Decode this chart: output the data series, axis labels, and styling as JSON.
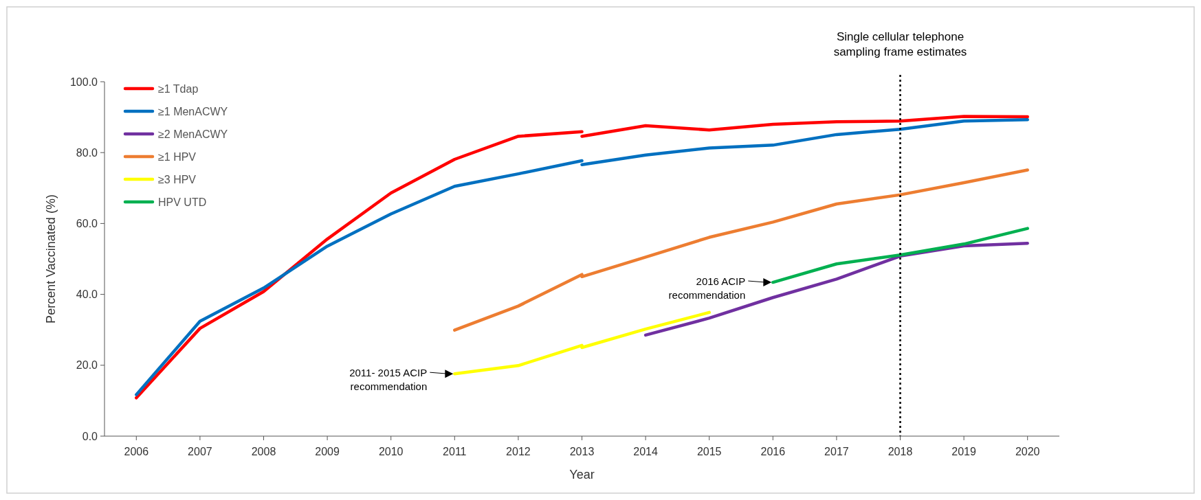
{
  "chart_data": {
    "type": "line",
    "xlabel": "Year",
    "ylabel": "Percent Vaccinated (%)",
    "xlim": [
      2005.5,
      2020.5
    ],
    "xticks": [
      2006,
      2007,
      2008,
      2009,
      2010,
      2011,
      2012,
      2013,
      2014,
      2015,
      2016,
      2017,
      2018,
      2019,
      2020
    ],
    "ylim": [
      0,
      100
    ],
    "yticks": [
      {
        "value": 0,
        "label": "0.0"
      },
      {
        "value": 20,
        "label": "20.0"
      },
      {
        "value": 40,
        "label": "40.0"
      },
      {
        "value": 60,
        "label": "60.0"
      },
      {
        "value": 80,
        "label": "80.0"
      },
      {
        "value": 100,
        "label": "100.0"
      }
    ],
    "grid": false,
    "legend": "top left",
    "marker": "none",
    "line_style": "solid",
    "series": [
      {
        "name": "≥1 Tdap",
        "color": "#ff0000",
        "x": [
          2006,
          2007,
          2008,
          2009,
          2010,
          2011,
          2012,
          2013,
          null,
          2013,
          2014,
          2015,
          2016,
          2017,
          2018,
          2019,
          2020
        ],
        "values": [
          10.8,
          30.4,
          40.8,
          55.6,
          68.6,
          78.1,
          84.6,
          85.9,
          null,
          84.6,
          87.6,
          86.4,
          88.0,
          88.7,
          88.9,
          90.2,
          90.1
        ]
      },
      {
        "name": "≥1 MenACWY",
        "color": "#0070c0",
        "x": [
          2006,
          2007,
          2008,
          2009,
          2010,
          2011,
          2012,
          2013,
          null,
          2013,
          2014,
          2015,
          2016,
          2017,
          2018,
          2019,
          2020
        ],
        "values": [
          11.7,
          32.4,
          41.8,
          53.6,
          62.7,
          70.5,
          74.0,
          77.7,
          null,
          76.6,
          79.3,
          81.3,
          82.1,
          85.1,
          86.6,
          88.9,
          89.3
        ]
      },
      {
        "name": "≥2 MenACWY",
        "color": "#7030a0",
        "x": [
          2014,
          2015,
          2016,
          2017,
          2018,
          2019,
          2020
        ],
        "values": [
          28.5,
          33.3,
          39.1,
          44.3,
          50.8,
          53.7,
          54.4
        ]
      },
      {
        "name": "≥1 HPV",
        "color": "#ed7d31",
        "x": [
          2011,
          2012,
          2013,
          null,
          2013,
          2014,
          2015,
          2016,
          2017,
          2018,
          2019,
          2020
        ],
        "values": [
          29.9,
          36.7,
          45.6,
          null,
          45.0,
          50.5,
          56.1,
          60.4,
          65.5,
          68.1,
          71.5,
          75.1
        ]
      },
      {
        "name": "≥3 HPV",
        "color": "#ffff00",
        "x": [
          2011,
          2012,
          2013,
          null,
          2013,
          2014,
          2015
        ],
        "values": [
          17.6,
          19.9,
          25.6,
          null,
          25.0,
          30.2,
          34.9
        ]
      },
      {
        "name": "HPV UTD",
        "color": "#00b050",
        "x": [
          2016,
          2017,
          2018,
          2019,
          2020
        ],
        "values": [
          43.4,
          48.6,
          51.1,
          54.2,
          58.6
        ]
      }
    ],
    "ref_lines": [
      {
        "axis": "x",
        "value": 2018,
        "label": "Single cellular telephone sampling frame estimates",
        "color": "#000000",
        "line_style": "dotted"
      }
    ],
    "annotations": [
      {
        "text": "2011- 2015 ACIP recommendation",
        "x": 2011,
        "y": 17.6
      },
      {
        "text": "2016 ACIP recommendation",
        "x": 2016,
        "y": 43.4
      }
    ]
  }
}
